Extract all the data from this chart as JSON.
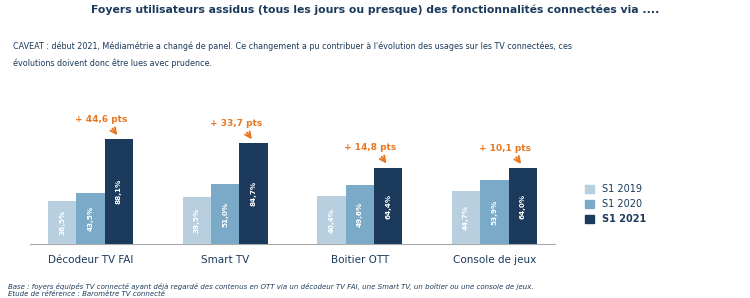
{
  "title": "Foyers utilisateurs assidus (tous les jours ou presque) des fonctionnalités connectées via ....",
  "caveat_line1": "CAVEAT : début 2021, Médiamétrie a changé de panel. Ce changement a pu contribuer à l'évolution des usages sur les TV connectées, ces",
  "caveat_line2": "évolutions doivent donc être lues avec prudence.",
  "footnote": "Base : foyers équipés TV connecté ayant déjà regardé des contenus en OTT via un décodeur TV FAI, une Smart TV, un boîtier ou une console de jeux.\nEtude de référence : Baromètre TV connecté",
  "categories": [
    "Décodeur TV FAI",
    "Smart TV",
    "Boitier OTT",
    "Console de jeux"
  ],
  "s1_2019": [
    36.5,
    39.5,
    40.4,
    44.7
  ],
  "s1_2020": [
    43.5,
    51.0,
    49.6,
    53.9
  ],
  "s1_2021": [
    88.1,
    84.7,
    64.4,
    64.0
  ],
  "labels_2019": [
    "36,5%",
    "39,5%",
    "40,4%",
    "44,7%"
  ],
  "labels_2020": [
    "43,5%",
    "51,0%",
    "49,6%",
    "53,9%"
  ],
  "labels_2021": [
    "88,1%",
    "84,7%",
    "64,4%",
    "64,0%"
  ],
  "delta_labels": [
    "+ 44,6 pts",
    "+ 33,7 pts",
    "+ 14,8 pts",
    "+ 10,1 pts"
  ],
  "color_2019": "#b8cfe0",
  "color_2020": "#7aaac8",
  "color_2021": "#1b3a5c",
  "color_delta": "#e87722",
  "color_title": "#1b3a5c",
  "color_caveat_bg": "#e8f0f7",
  "color_caveat_text": "#1b3a5c",
  "color_footnote": "#1b3a5c",
  "legend_labels": [
    "S1 2019",
    "S1 2020",
    "S1 2021"
  ],
  "bar_width": 0.21,
  "ylim": [
    0,
    105
  ]
}
